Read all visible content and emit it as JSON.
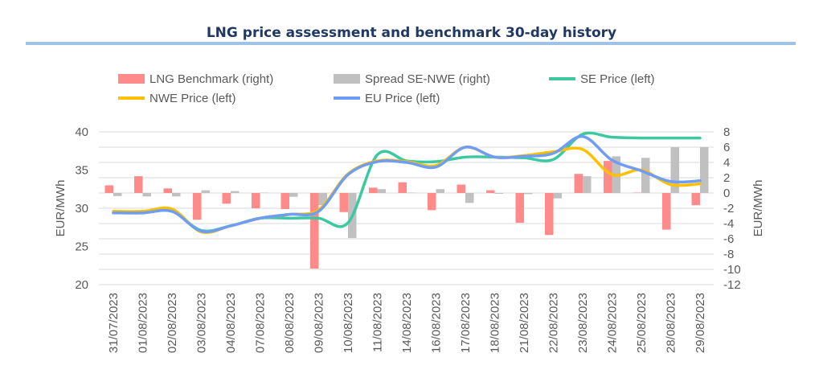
{
  "chart_data": {
    "type": "bar+line",
    "title": "LNG price assessment and benchmark 30-day history",
    "ylabel_left": "EUR/MWh",
    "ylabel_right": "EUR/MWh",
    "ylim_left": [
      20,
      40
    ],
    "ylim_right": [
      -12,
      8
    ],
    "yticks_left": [
      20,
      25,
      30,
      35,
      40
    ],
    "yticks_right": [
      -12,
      -10,
      -8,
      -6,
      -4,
      -2,
      0,
      2,
      4,
      6,
      8
    ],
    "grid": true,
    "legend_position": "top",
    "categories": [
      "31/07/2023",
      "01/08/2023",
      "02/08/2023",
      "03/08/2023",
      "04/08/2023",
      "07/08/2023",
      "08/08/2023",
      "09/08/2023",
      "10/08/2023",
      "11/08/2023",
      "14/08/2023",
      "16/08/2023",
      "17/08/2023",
      "18/08/2023",
      "21/08/2023",
      "22/08/2023",
      "23/08/2023",
      "24/08/2023",
      "25/08/2023",
      "28/08/2023",
      "29/08/2023"
    ],
    "series": [
      {
        "name": "LNG Benchmark (right)",
        "type": "bar",
        "axis": "right",
        "color": "#ff8a8a",
        "values": [
          1.0,
          2.2,
          0.6,
          -3.5,
          -1.4,
          -2.0,
          -2.1,
          -9.9,
          -2.5,
          0.7,
          1.4,
          -2.25,
          1.1,
          0.35,
          -3.9,
          -5.5,
          2.5,
          4.2,
          0.05,
          -4.8,
          -1.6
        ]
      },
      {
        "name": "Spread SE-NWE (right)",
        "type": "bar",
        "axis": "right",
        "color": "#c0c0c0",
        "values": [
          -0.4,
          -0.45,
          -0.45,
          0.35,
          0.25,
          0.05,
          -0.5,
          -1.6,
          -5.9,
          0.5,
          0.05,
          0.5,
          -1.3,
          -0.1,
          -0.15,
          -0.7,
          2.2,
          4.8,
          4.6,
          6.0,
          6.0
        ]
      },
      {
        "name": "SE Price (left)",
        "type": "line",
        "axis": "left",
        "color": "#3cc9a0",
        "values": [
          29.4,
          29.4,
          29.6,
          27.1,
          27.7,
          28.7,
          28.7,
          28.7,
          28.1,
          37.0,
          36.2,
          36.1,
          36.7,
          36.7,
          36.6,
          36.4,
          39.7,
          39.3,
          39.2,
          39.2,
          39.2
        ]
      },
      {
        "name": "NWE Price (left)",
        "type": "line",
        "axis": "left",
        "color": "#ffc000",
        "values": [
          29.6,
          29.6,
          29.9,
          26.9,
          27.7,
          28.7,
          29.2,
          29.8,
          34.5,
          36.2,
          36.1,
          35.6,
          38.0,
          36.7,
          36.9,
          37.4,
          37.7,
          34.4,
          35.0,
          33.1,
          33.2
        ]
      },
      {
        "name": "EU Price (left)",
        "type": "line",
        "axis": "left",
        "color": "#6f9cf5",
        "values": [
          29.4,
          29.4,
          29.6,
          27.0,
          27.7,
          28.7,
          29.2,
          29.6,
          34.4,
          36.1,
          36.0,
          35.4,
          38.0,
          36.7,
          36.8,
          37.2,
          39.4,
          36.3,
          34.9,
          33.5,
          33.6
        ]
      }
    ]
  }
}
